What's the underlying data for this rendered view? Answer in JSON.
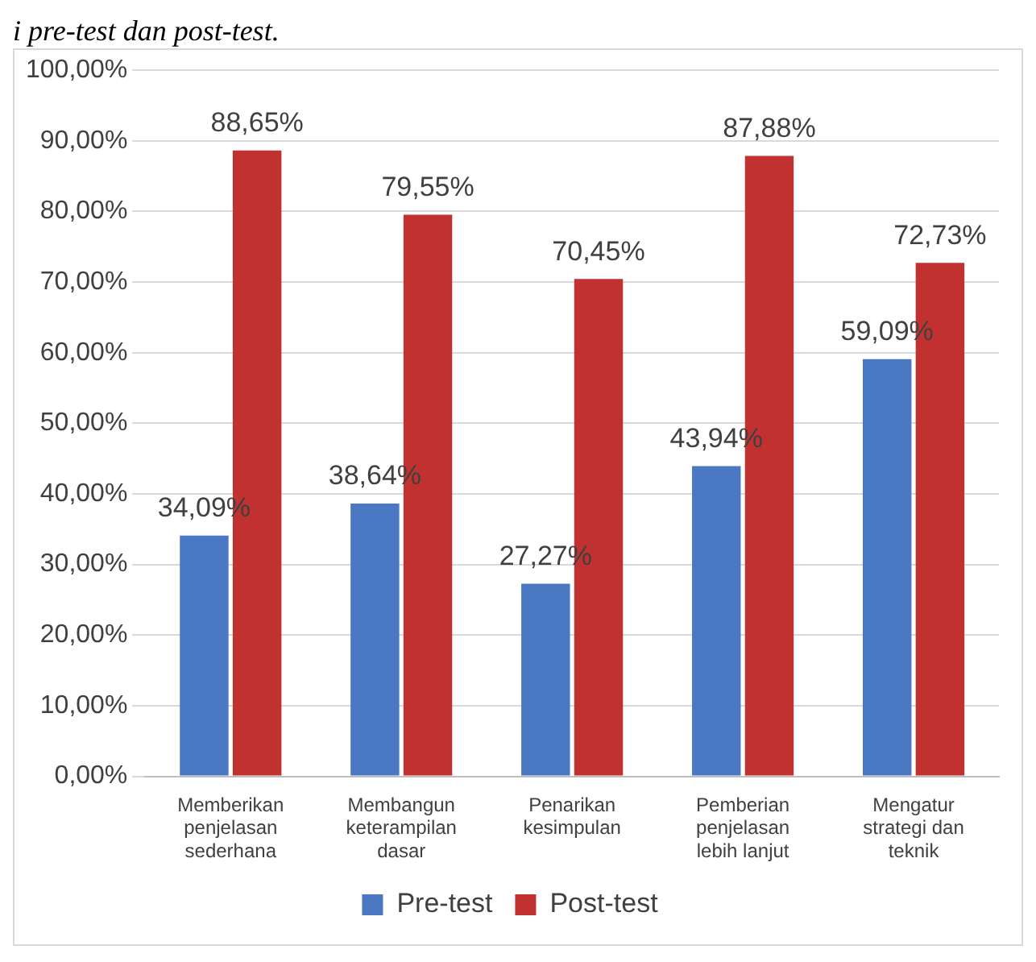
{
  "chart_data": {
    "type": "bar",
    "annotations": [
      "i pre-test dan post-test."
    ],
    "categories": [
      "Memberikan penjelasan sederhana",
      "Membangun keterampilan dasar",
      "Penarikan kesimpulan",
      "Pemberian penjelasan lebih lanjut",
      "Mengatur strategi dan teknik"
    ],
    "series": [
      {
        "name": "Pre-test",
        "color": "#4a78c2",
        "values": [
          34.09,
          38.64,
          27.27,
          43.94,
          59.09
        ],
        "value_labels": [
          "34,09%",
          "38,64%",
          "27,27%",
          "43,94%",
          "59,09%"
        ]
      },
      {
        "name": "Post-test",
        "color": "#c0312f",
        "values": [
          88.65,
          79.55,
          70.45,
          87.88,
          72.73
        ],
        "value_labels": [
          "88,65%",
          "79,55%",
          "70,45%",
          "87,88%",
          "72,73%"
        ]
      }
    ],
    "ylim": [
      0,
      100
    ],
    "yticks": [
      {
        "value": 0,
        "label": "0,00%"
      },
      {
        "value": 10,
        "label": "10,00%"
      },
      {
        "value": 20,
        "label": "20,00%"
      },
      {
        "value": 30,
        "label": "30,00%"
      },
      {
        "value": 40,
        "label": "40,00%"
      },
      {
        "value": 50,
        "label": "50,00%"
      },
      {
        "value": 60,
        "label": "60,00%"
      },
      {
        "value": 70,
        "label": "70,00%"
      },
      {
        "value": 80,
        "label": "80,00%"
      },
      {
        "value": 90,
        "label": "90,00%"
      },
      {
        "value": 100,
        "label": "100,00%"
      }
    ],
    "grid": "y",
    "legend": "bottom"
  }
}
